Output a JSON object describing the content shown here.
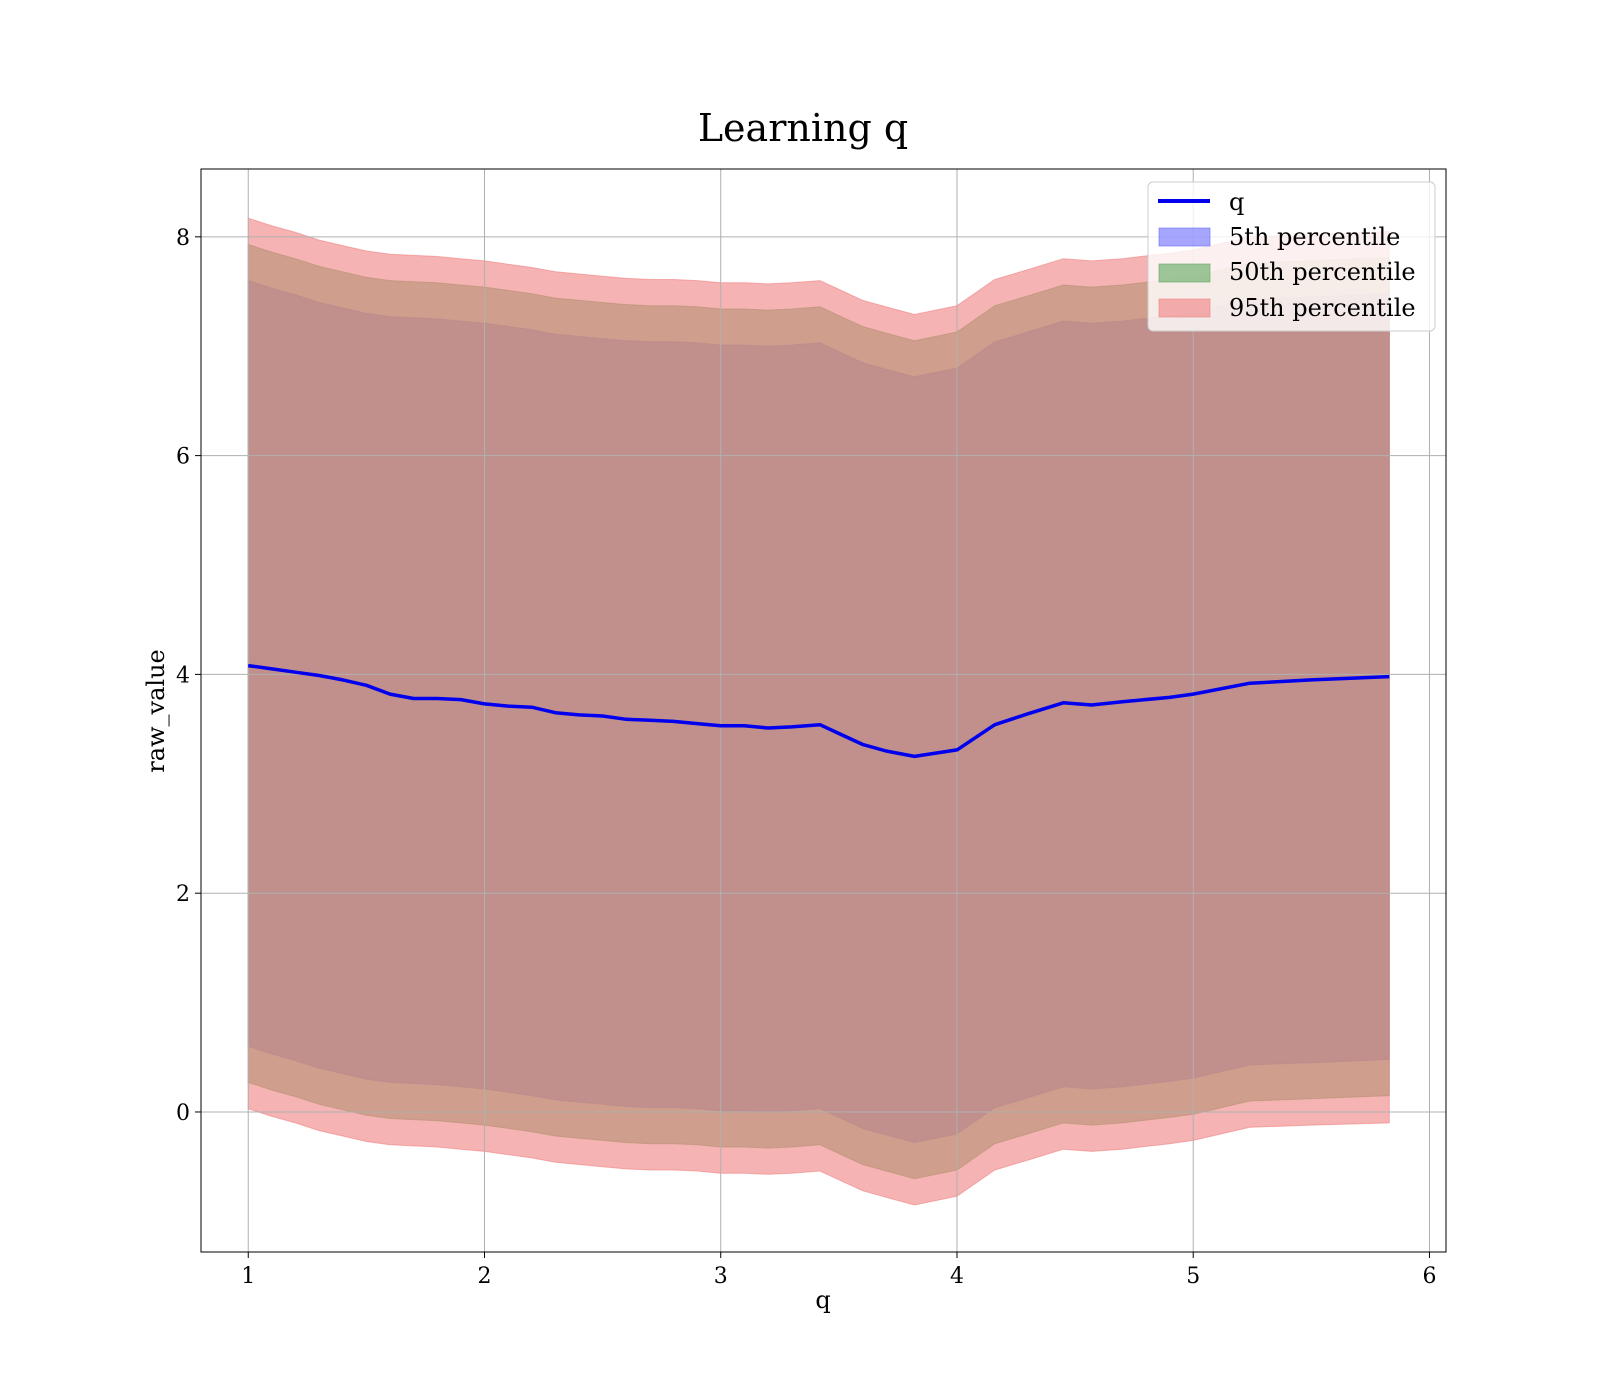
{
  "chart_data": {
    "type": "line",
    "title": "Learning q",
    "xlabel": "q",
    "ylabel": "raw_value",
    "xlim": [
      0.8,
      6.07
    ],
    "ylim": [
      -1.28,
      8.62
    ],
    "xticks": [
      1,
      2,
      3,
      4,
      5,
      6
    ],
    "yticks": [
      0,
      2,
      4,
      6,
      8
    ],
    "grid": true,
    "legend_position": "top-right",
    "x": [
      1.0,
      1.1,
      1.2,
      1.3,
      1.4,
      1.5,
      1.6,
      1.7,
      1.8,
      1.9,
      2.0,
      2.1,
      2.2,
      2.3,
      2.4,
      2.5,
      2.6,
      2.7,
      2.8,
      2.9,
      3.0,
      3.1,
      3.2,
      3.3,
      3.42,
      3.5,
      3.6,
      3.7,
      3.82,
      4.0,
      4.16,
      4.3,
      4.45,
      4.57,
      4.7,
      4.9,
      5.0,
      5.24,
      5.5,
      5.83
    ],
    "series": [
      {
        "name": "q",
        "kind": "line",
        "color": "#0000ee",
        "values": [
          4.08,
          4.05,
          4.02,
          3.99,
          3.95,
          3.9,
          3.82,
          3.78,
          3.78,
          3.77,
          3.73,
          3.71,
          3.7,
          3.65,
          3.63,
          3.62,
          3.59,
          3.58,
          3.57,
          3.55,
          3.53,
          3.53,
          3.51,
          3.52,
          3.54,
          3.46,
          3.36,
          3.3,
          3.25,
          3.31,
          3.54,
          3.64,
          3.74,
          3.72,
          3.75,
          3.79,
          3.82,
          3.92,
          3.95,
          3.98
        ]
      },
      {
        "name": "5th percentile",
        "kind": "band",
        "color": "#6b6bff",
        "lower": [
          0.6,
          0.53,
          0.47,
          0.4,
          0.35,
          0.3,
          0.27,
          0.26,
          0.25,
          0.23,
          0.21,
          0.18,
          0.15,
          0.11,
          0.09,
          0.07,
          0.05,
          0.04,
          0.04,
          0.03,
          0.01,
          0.01,
          0.0,
          0.01,
          0.03,
          -0.05,
          -0.15,
          -0.21,
          -0.28,
          -0.2,
          0.04,
          0.13,
          0.23,
          0.21,
          0.23,
          0.28,
          0.31,
          0.43,
          0.45,
          0.48
        ],
        "upper": [
          7.6,
          7.53,
          7.47,
          7.4,
          7.35,
          7.3,
          7.27,
          7.26,
          7.25,
          7.23,
          7.21,
          7.18,
          7.15,
          7.11,
          7.09,
          7.07,
          7.05,
          7.04,
          7.04,
          7.03,
          7.01,
          7.01,
          7.0,
          7.01,
          7.03,
          6.95,
          6.85,
          6.79,
          6.72,
          6.8,
          7.04,
          7.13,
          7.23,
          7.21,
          7.23,
          7.28,
          7.31,
          7.43,
          7.45,
          7.48
        ]
      },
      {
        "name": "50th percentile",
        "kind": "band",
        "color": "#5fa85f",
        "lower": [
          0.27,
          0.2,
          0.14,
          0.07,
          0.02,
          -0.03,
          -0.06,
          -0.07,
          -0.08,
          -0.1,
          -0.12,
          -0.15,
          -0.18,
          -0.22,
          -0.24,
          -0.26,
          -0.28,
          -0.29,
          -0.29,
          -0.3,
          -0.32,
          -0.32,
          -0.33,
          -0.32,
          -0.3,
          -0.38,
          -0.48,
          -0.54,
          -0.61,
          -0.53,
          -0.29,
          -0.2,
          -0.1,
          -0.12,
          -0.1,
          -0.05,
          -0.02,
          0.1,
          0.12,
          0.15
        ],
        "upper": [
          7.93,
          7.86,
          7.8,
          7.73,
          7.68,
          7.63,
          7.6,
          7.59,
          7.58,
          7.56,
          7.54,
          7.51,
          7.48,
          7.44,
          7.42,
          7.4,
          7.38,
          7.37,
          7.37,
          7.36,
          7.34,
          7.34,
          7.33,
          7.34,
          7.36,
          7.28,
          7.18,
          7.12,
          7.05,
          7.13,
          7.37,
          7.46,
          7.56,
          7.54,
          7.56,
          7.61,
          7.64,
          7.76,
          7.78,
          7.81
        ]
      },
      {
        "name": "95th percentile",
        "kind": "band",
        "color": "#f08080",
        "lower": [
          0.03,
          -0.04,
          -0.1,
          -0.17,
          -0.22,
          -0.27,
          -0.3,
          -0.31,
          -0.32,
          -0.34,
          -0.36,
          -0.39,
          -0.42,
          -0.46,
          -0.48,
          -0.5,
          -0.52,
          -0.53,
          -0.53,
          -0.54,
          -0.56,
          -0.56,
          -0.57,
          -0.56,
          -0.54,
          -0.62,
          -0.72,
          -0.78,
          -0.85,
          -0.77,
          -0.53,
          -0.44,
          -0.34,
          -0.36,
          -0.34,
          -0.29,
          -0.26,
          -0.14,
          -0.12,
          -0.1
        ],
        "upper": [
          8.17,
          8.1,
          8.04,
          7.97,
          7.92,
          7.87,
          7.84,
          7.83,
          7.82,
          7.8,
          7.78,
          7.75,
          7.72,
          7.68,
          7.66,
          7.64,
          7.62,
          7.61,
          7.61,
          7.6,
          7.58,
          7.58,
          7.57,
          7.58,
          7.6,
          7.52,
          7.42,
          7.36,
          7.29,
          7.37,
          7.61,
          7.7,
          7.8,
          7.78,
          7.8,
          7.85,
          7.88,
          8.0,
          8.02,
          8.05
        ]
      }
    ]
  }
}
